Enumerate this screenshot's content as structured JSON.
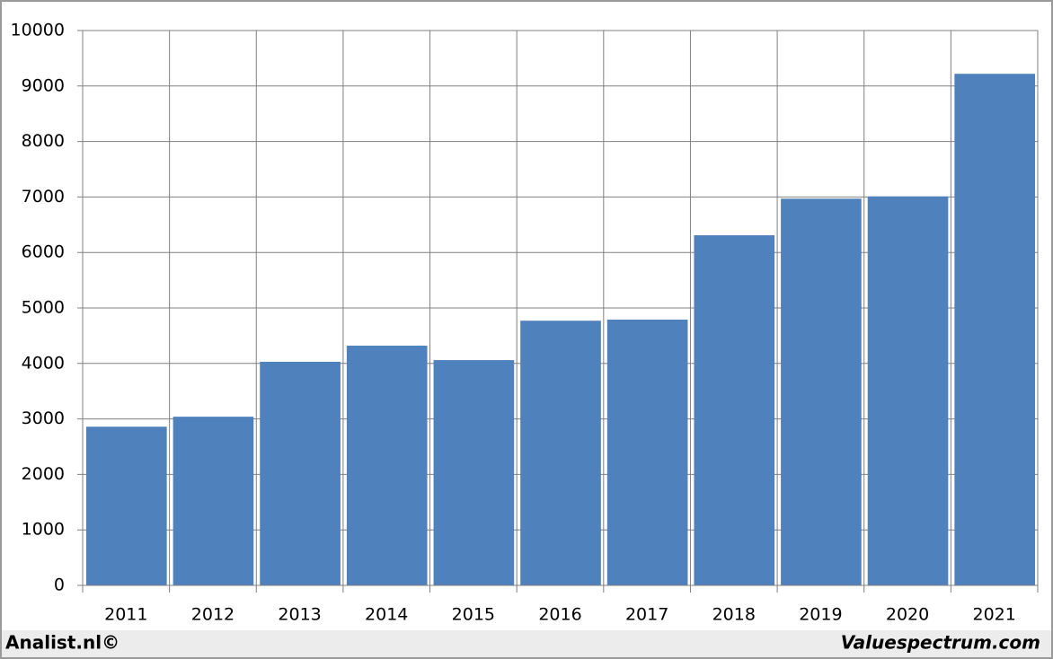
{
  "chart_data": {
    "type": "bar",
    "categories": [
      "2011",
      "2012",
      "2013",
      "2014",
      "2015",
      "2016",
      "2017",
      "2018",
      "2019",
      "2020",
      "2021"
    ],
    "values": [
      2860,
      3040,
      4030,
      4320,
      4060,
      4770,
      4790,
      6310,
      6970,
      7010,
      9220
    ],
    "color": "#4f81bd",
    "ylim": [
      0,
      10000
    ],
    "yticks": [
      0,
      1000,
      2000,
      3000,
      4000,
      5000,
      6000,
      7000,
      8000,
      9000,
      10000
    ],
    "grid": true,
    "annotations": [
      "Analist.nl©",
      "Valuespectrum.com"
    ]
  }
}
